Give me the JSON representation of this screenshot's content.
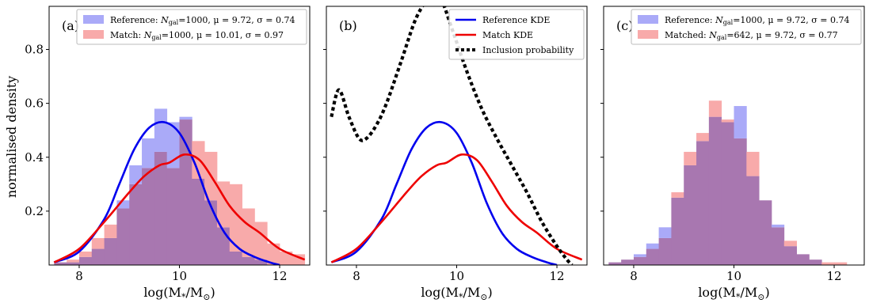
{
  "chart_data": {
    "type": "histogram-kde",
    "ylabel": "normalised density",
    "xlabel": "log(M*/M⊙)",
    "xlim": [
      7.4,
      12.6
    ],
    "ylim": [
      0,
      0.96
    ],
    "xticks": [
      8,
      10,
      12
    ],
    "yticks": [
      0.2,
      0.4,
      0.6,
      0.8
    ],
    "grid": false,
    "colors": {
      "reference": "#0000ee",
      "match": "#ee0000",
      "ref_fill": "#aaaaf8",
      "match_fill": "#f8aaaa",
      "overlap_fill": "#a877b0"
    },
    "bin_edges": [
      7.5,
      7.75,
      8.0,
      8.25,
      8.5,
      8.75,
      9.0,
      9.25,
      9.5,
      9.75,
      10.0,
      10.25,
      10.5,
      10.75,
      11.0,
      11.25,
      11.5,
      11.75,
      12.0,
      12.25,
      12.5
    ],
    "panels": [
      {
        "tag": "(a)",
        "legend": [
          {
            "label": "Reference: N_gal=1000, μ = 9.72, σ = 0.74",
            "swatch": "ref_fill"
          },
          {
            "label": "Match: N_gal=1000, μ = 10.01, σ = 0.97",
            "swatch": "match_fill"
          }
        ],
        "hist_reference": [
          0.01,
          0.01,
          0.03,
          0.06,
          0.1,
          0.24,
          0.37,
          0.47,
          0.58,
          0.53,
          0.55,
          0.32,
          0.24,
          0.14,
          0.05,
          0.03,
          0.02,
          0.0,
          0.0,
          0.0
        ],
        "hist_match": [
          0.01,
          0.02,
          0.05,
          0.1,
          0.15,
          0.21,
          0.3,
          0.36,
          0.42,
          0.36,
          0.54,
          0.46,
          0.42,
          0.31,
          0.3,
          0.21,
          0.16,
          0.08,
          0.05,
          0.04
        ],
        "kde_reference": {
          "x": [
            7.5,
            8.0,
            8.5,
            8.8,
            9.1,
            9.4,
            9.7,
            10.0,
            10.3,
            10.6,
            10.9,
            11.2,
            11.5,
            11.8,
            12.0
          ],
          "y": [
            0.01,
            0.05,
            0.17,
            0.3,
            0.43,
            0.51,
            0.53,
            0.49,
            0.38,
            0.23,
            0.12,
            0.06,
            0.03,
            0.01,
            0.0
          ]
        },
        "kde_match": {
          "x": [
            7.5,
            8.0,
            8.5,
            9.0,
            9.3,
            9.6,
            9.8,
            10.1,
            10.4,
            10.7,
            11.0,
            11.3,
            11.6,
            12.0,
            12.5
          ],
          "y": [
            0.01,
            0.06,
            0.16,
            0.27,
            0.33,
            0.37,
            0.38,
            0.41,
            0.39,
            0.31,
            0.22,
            0.16,
            0.12,
            0.06,
            0.02
          ]
        }
      },
      {
        "tag": "(b)",
        "legend": [
          {
            "label": "Reference KDE",
            "swatch": "ref_line"
          },
          {
            "label": "Match KDE",
            "swatch": "match_line"
          },
          {
            "label": "Inclusion probability",
            "swatch": "dotted"
          }
        ],
        "kde_reference": {
          "x": [
            7.5,
            8.0,
            8.5,
            8.8,
            9.1,
            9.4,
            9.7,
            10.0,
            10.3,
            10.6,
            10.9,
            11.2,
            11.5,
            11.8,
            12.0
          ],
          "y": [
            0.01,
            0.05,
            0.17,
            0.3,
            0.43,
            0.51,
            0.53,
            0.49,
            0.38,
            0.23,
            0.12,
            0.06,
            0.03,
            0.01,
            0.0
          ]
        },
        "kde_match": {
          "x": [
            7.5,
            8.0,
            8.5,
            9.0,
            9.3,
            9.6,
            9.8,
            10.1,
            10.4,
            10.7,
            11.0,
            11.3,
            11.6,
            12.0,
            12.5
          ],
          "y": [
            0.01,
            0.06,
            0.16,
            0.27,
            0.33,
            0.37,
            0.38,
            0.41,
            0.39,
            0.31,
            0.22,
            0.16,
            0.12,
            0.06,
            0.02
          ]
        },
        "inclusion_probability": {
          "x": [
            7.5,
            7.65,
            7.85,
            8.05,
            8.2,
            8.4,
            8.6,
            8.9,
            9.2,
            9.5,
            9.7,
            9.9,
            10.2,
            10.5,
            10.8,
            11.1,
            11.4,
            11.7,
            12.0,
            12.2,
            12.3
          ],
          "y": [
            0.55,
            0.65,
            0.55,
            0.47,
            0.47,
            0.52,
            0.6,
            0.76,
            0.92,
            1.0,
            0.98,
            0.88,
            0.72,
            0.58,
            0.47,
            0.37,
            0.27,
            0.16,
            0.07,
            0.02,
            0.0
          ]
        }
      },
      {
        "tag": "(c)",
        "legend": [
          {
            "label": "Reference: N_gal=1000, μ = 9.72, σ = 0.74",
            "swatch": "ref_fill"
          },
          {
            "label": "Matched: N_gal=642, μ = 9.72, σ = 0.77",
            "swatch": "match_fill"
          }
        ],
        "hist_reference": [
          0.01,
          0.02,
          0.04,
          0.08,
          0.14,
          0.25,
          0.37,
          0.46,
          0.55,
          0.53,
          0.59,
          0.33,
          0.24,
          0.15,
          0.07,
          0.04,
          0.02,
          0.0,
          0.0,
          0.0
        ],
        "hist_match": [
          0.01,
          0.02,
          0.03,
          0.06,
          0.1,
          0.27,
          0.42,
          0.49,
          0.61,
          0.54,
          0.47,
          0.42,
          0.24,
          0.14,
          0.09,
          0.04,
          0.02,
          0.01,
          0.01,
          0.0
        ]
      }
    ]
  }
}
